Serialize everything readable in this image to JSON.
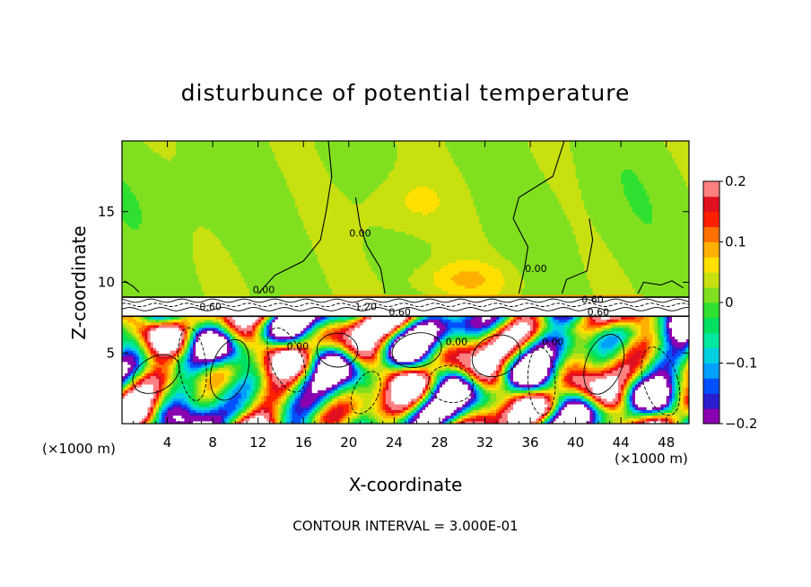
{
  "chart_data": {
    "type": "heatmap",
    "title": "disturbunce of potential temperature",
    "xlabel": "X-coordinate",
    "ylabel": "Z-coordinate",
    "x_unit": "(×1000 m)",
    "footer": "CONTOUR INTERVAL = 3.000E-01",
    "xlim": [
      0,
      50
    ],
    "ylim": [
      0,
      20
    ],
    "x_ticks": [
      4,
      8,
      12,
      16,
      20,
      24,
      28,
      32,
      36,
      40,
      44,
      48
    ],
    "y_ticks": [
      5,
      10,
      15
    ],
    "colorbar": {
      "range": [
        -0.2,
        0.2
      ],
      "tick_values": [
        0.2,
        0.1,
        0,
        -0.1,
        -0.2
      ],
      "tick_labels": [
        "0.2",
        "0.1",
        "0",
        "−0.1",
        "−0.2"
      ],
      "colors": [
        "#8a00b0",
        "#2a1fd0",
        "#0050ff",
        "#00a0ff",
        "#00d0e0",
        "#00e8a0",
        "#00e060",
        "#30e030",
        "#80e020",
        "#c8e010",
        "#ffe000",
        "#ffb000",
        "#ff7000",
        "#ff2000",
        "#e01020",
        "#ff8080"
      ]
    },
    "contour_labels": [
      {
        "text": "0.60",
        "x": 41.5,
        "z": 8.8
      },
      {
        "text": "0.60",
        "x": 7.8,
        "z": 8.3
      },
      {
        "text": "1.20",
        "x": 21.5,
        "z": 8.3
      },
      {
        "text": "0.60",
        "x": 24.5,
        "z": 7.9
      },
      {
        "text": "0.60",
        "x": 42.0,
        "z": 7.9
      },
      {
        "text": "0.00",
        "x": 15.5,
        "z": 5.5
      },
      {
        "text": "0.00",
        "x": 29.5,
        "z": 5.8
      },
      {
        "text": "0.00",
        "x": 38.0,
        "z": 5.8
      },
      {
        "text": "0.00",
        "x": 12.5,
        "z": 9.5
      },
      {
        "text": "0.00",
        "x": 21.0,
        "z": 13.5
      },
      {
        "text": "0.00",
        "x": 36.5,
        "z": 11.0
      }
    ]
  }
}
